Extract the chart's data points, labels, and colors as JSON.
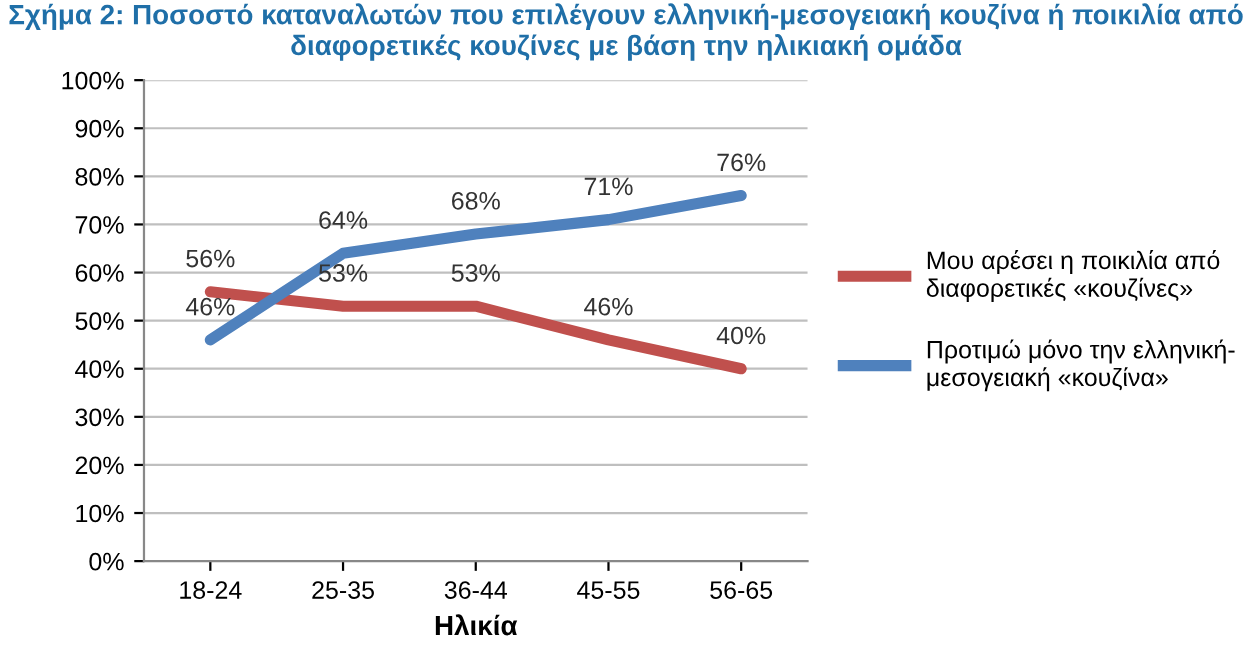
{
  "chart_data": {
    "type": "line",
    "title": "Σχήμα 2: Ποσοστό καταναλωτών που επιλέγουν ελληνική-μεσογειακή κουζίνα ή ποικιλία από διαφορετικές κουζίνες με βάση την ηλικιακή ομάδα",
    "xlabel": "Ηλικία",
    "categories": [
      "18-24",
      "25-35",
      "36-44",
      "45-55",
      "56-65"
    ],
    "series": [
      {
        "name": "Μου αρέσει η ποικιλία από\nδιαφορετικές «κουζίνες»",
        "color": "#c0504d",
        "values": [
          56,
          53,
          53,
          46,
          40
        ],
        "value_labels": [
          "56%",
          "53%",
          "53%",
          "46%",
          "40%"
        ]
      },
      {
        "name": "Προτιμώ μόνο την ελληνική-\nμεσογειακή «κουζίνα»",
        "color": "#4f81bd",
        "values": [
          46,
          64,
          68,
          71,
          76
        ],
        "value_labels": [
          "46%",
          "64%",
          "68%",
          "71%",
          "76%"
        ]
      }
    ],
    "ylim": [
      0,
      100
    ],
    "yticks": [
      {
        "value": 0,
        "label": "0%"
      },
      {
        "value": 10,
        "label": "10%"
      },
      {
        "value": 20,
        "label": "20%"
      },
      {
        "value": 30,
        "label": "30%"
      },
      {
        "value": 40,
        "label": "40%"
      },
      {
        "value": 50,
        "label": "50%"
      },
      {
        "value": 60,
        "label": "60%"
      },
      {
        "value": 70,
        "label": "70%"
      },
      {
        "value": 80,
        "label": "80%"
      },
      {
        "value": 90,
        "label": "90%"
      },
      {
        "value": 100,
        "label": "100%"
      }
    ],
    "grid": "y",
    "legend": "right",
    "marker": "none",
    "line_style": "solid"
  }
}
